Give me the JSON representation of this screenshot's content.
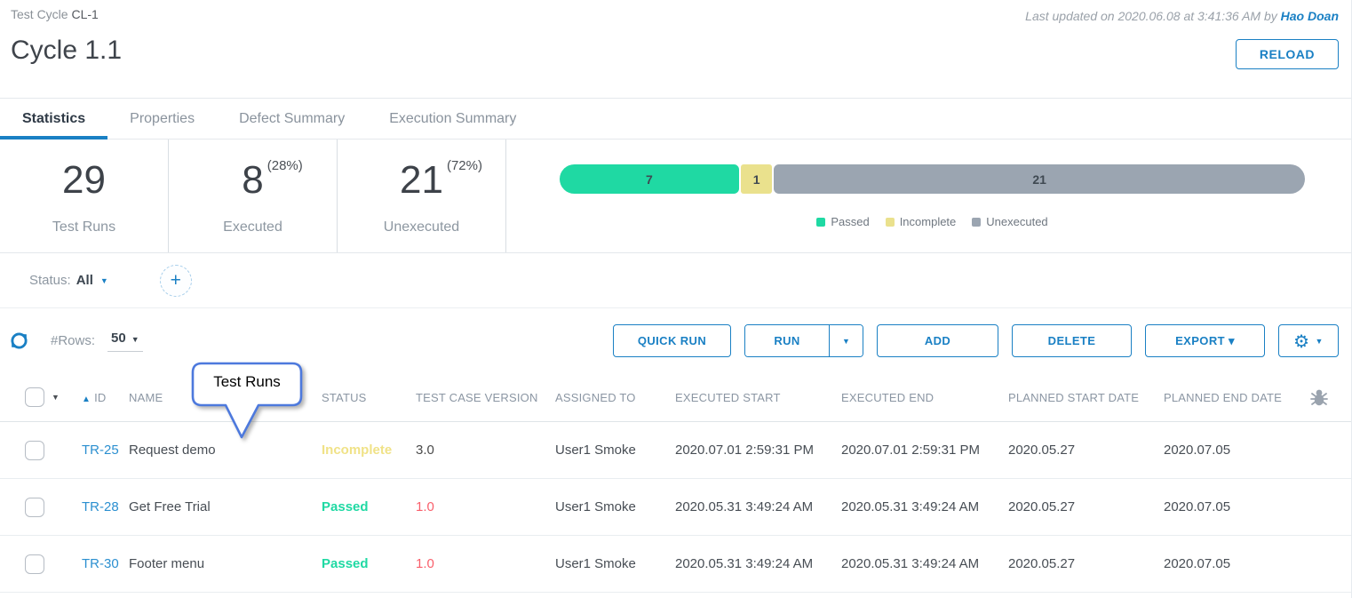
{
  "header": {
    "breadcrumb_label": "Test Cycle",
    "breadcrumb_id": "CL-1",
    "title": "Cycle 1.1",
    "last_updated_prefix": "Last updated on 2020.06.08 at 3:41:36 AM by",
    "last_updated_user": "Hao Doan",
    "reload_label": "RELOAD"
  },
  "tabs": [
    {
      "label": "Statistics",
      "active": true
    },
    {
      "label": "Properties",
      "active": false
    },
    {
      "label": "Defect Summary",
      "active": false
    },
    {
      "label": "Execution Summary",
      "active": false
    }
  ],
  "stats": [
    {
      "value": "29",
      "suffix": "",
      "label": "Test Runs"
    },
    {
      "value": "8",
      "suffix": "(28%)",
      "label": "Executed"
    },
    {
      "value": "21",
      "suffix": "(72%)",
      "label": "Unexecuted"
    }
  ],
  "progress": {
    "segments": [
      {
        "label": "7",
        "value": 7,
        "color": "#1fd9a3"
      },
      {
        "label": "1",
        "value": 1,
        "color": "#eae18d"
      },
      {
        "label": "21",
        "value": 21,
        "color": "#9ba5b1"
      }
    ],
    "legend": [
      {
        "label": "Passed",
        "color": "#1fd9a3"
      },
      {
        "label": "Incomplete",
        "color": "#eae18d"
      },
      {
        "label": "Unexecuted",
        "color": "#9ba5b1"
      }
    ]
  },
  "filter": {
    "status_label": "Status:",
    "status_value": "All",
    "plus_label": "+"
  },
  "toolbar": {
    "rows_label": "#Rows:",
    "rows_value": "50",
    "quick_run": "QUICK RUN",
    "run": "RUN",
    "add": "ADD",
    "delete": "DELETE",
    "export": "EXPORT ▾"
  },
  "annotation": {
    "text": "Test Runs"
  },
  "colors": {
    "accent_blue": "#1a80c4",
    "passed_green": "#1fd9a3",
    "incomplete_yellow": "#eae18d",
    "unexecuted_gray": "#9ba5b1",
    "version_red": "#f95f6b",
    "callout_border": "#4d79dd"
  },
  "table": {
    "columns": [
      "ID",
      "NAME",
      "STATUS",
      "TEST CASE VERSION",
      "ASSIGNED TO",
      "EXECUTED START",
      "EXECUTED END",
      "PLANNED START DATE",
      "PLANNED END DATE"
    ],
    "rows": [
      {
        "id": "TR-25",
        "name": "Request demo",
        "status": "Incomplete",
        "status_color": "#f0e287",
        "version": "3.0",
        "version_color": "#4a4a4a",
        "assigned": "User1 Smoke",
        "exec_start": "2020.07.01 2:59:31 PM",
        "exec_end": "2020.07.01 2:59:31 PM",
        "planned_start": "2020.05.27",
        "planned_end": "2020.07.05"
      },
      {
        "id": "TR-28",
        "name": "Get Free Trial",
        "status": "Passed",
        "status_color": "#1fd9a3",
        "version": "1.0",
        "version_color": "#f95f6b",
        "assigned": "User1 Smoke",
        "exec_start": "2020.05.31 3:49:24 AM",
        "exec_end": "2020.05.31 3:49:24 AM",
        "planned_start": "2020.05.27",
        "planned_end": "2020.07.05"
      },
      {
        "id": "TR-30",
        "name": "Footer menu",
        "status": "Passed",
        "status_color": "#1fd9a3",
        "version": "1.0",
        "version_color": "#f95f6b",
        "assigned": "User1 Smoke",
        "exec_start": "2020.05.31 3:49:24 AM",
        "exec_end": "2020.05.31 3:49:24 AM",
        "planned_start": "2020.05.27",
        "planned_end": "2020.07.05"
      }
    ]
  }
}
